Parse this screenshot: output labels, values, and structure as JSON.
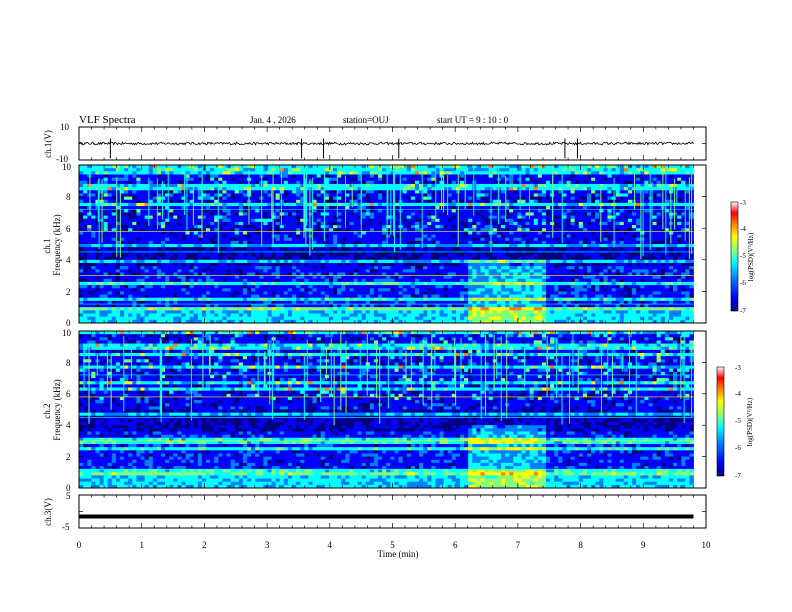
{
  "header": {
    "title": "VLF Spectra",
    "date": "Jan. 4 , 2026",
    "station": "station=OUJ",
    "start_time": "start UT =  9 : 10 : 0"
  },
  "colors": {
    "background": "#ffffff",
    "waveform": "#000000",
    "colormap": [
      "#00007f",
      "#0000ff",
      "#007fff",
      "#00ffff",
      "#7fff7f",
      "#ffff00",
      "#ff7f00",
      "#ff0000",
      "#ffffff"
    ]
  },
  "chart_data": [
    {
      "type": "line",
      "panel": "ch1-waveform",
      "ylabel": "ch.1(V)",
      "ylim": [
        -10,
        10
      ],
      "y_tick_labels": [
        "10",
        "-10"
      ],
      "xlim": [
        0,
        10
      ],
      "baseline": 0,
      "spikes_min": [
        0.5,
        3.55,
        3.9,
        5.1,
        7.75,
        7.95
      ],
      "x_axis_labels": false
    },
    {
      "type": "heatmap",
      "panel": "ch1-spectrogram",
      "ylabel": "ch.1\nFrequency (kHz)",
      "ylim": [
        0,
        10
      ],
      "y_tick_labels": [
        "0",
        "2",
        "4",
        "6",
        "8",
        "10"
      ],
      "xlim": [
        0,
        10
      ],
      "colorbar": {
        "label": "log(PSD)(V²/Hz)",
        "range": [
          -7,
          -3
        ],
        "tick_labels": [
          "-3",
          "-4",
          "-5",
          "-6",
          "-7"
        ]
      }
    },
    {
      "type": "heatmap",
      "panel": "ch2-spectrogram",
      "ylabel": "ch.2\nFrequency (kHz)",
      "ylim": [
        0,
        10
      ],
      "y_tick_labels": [
        "0",
        "2",
        "4",
        "6",
        "8",
        "10"
      ],
      "xlim": [
        0,
        10
      ],
      "colorbar": {
        "label": "log(PSD)(V²/Hz)",
        "range": [
          -7,
          -3
        ],
        "tick_labels": [
          "-3",
          "-4",
          "-5",
          "-6",
          "-7"
        ]
      }
    },
    {
      "type": "line",
      "panel": "ch3-waveform",
      "ylabel": "ch.3(V)",
      "ylim": [
        -5,
        5
      ],
      "y_tick_labels": [
        "5",
        "0",
        "-5"
      ],
      "xlim": [
        0,
        10
      ],
      "baseline": -1.5,
      "xlabel": "Time (min)",
      "x_tick_labels": [
        "0",
        "1",
        "2",
        "3",
        "4",
        "5",
        "6",
        "7",
        "8",
        "9",
        "10"
      ]
    }
  ]
}
